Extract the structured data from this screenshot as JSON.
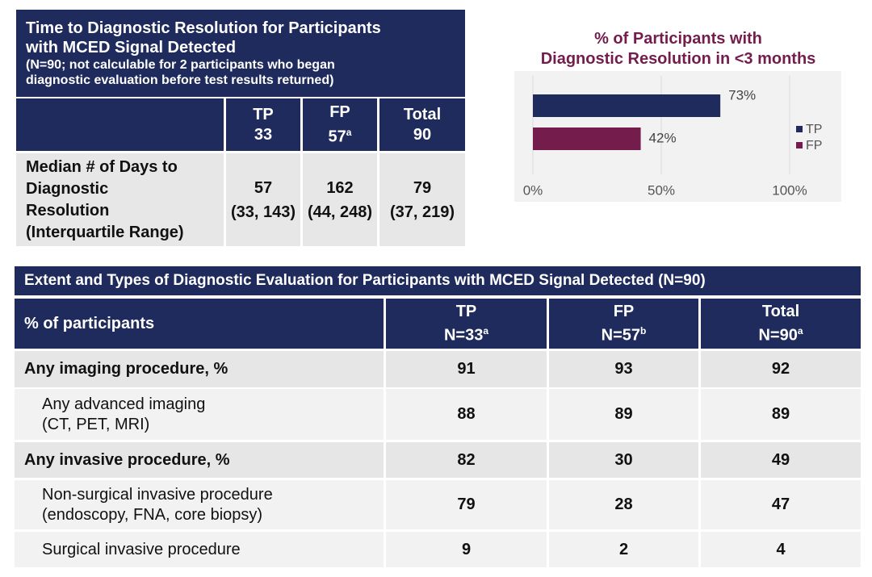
{
  "table1": {
    "title": [
      "Time to Diagnostic Resolution for Participants",
      "with MCED Signal Detected"
    ],
    "subtitle": [
      "(N=90; not calculable for 2 participants who began",
      "diagnostic evaluation before test results returned)"
    ],
    "columns": [
      {
        "label": "TP",
        "n": "33"
      },
      {
        "label": "FP",
        "n": "57",
        "note": "a"
      },
      {
        "label": "Total",
        "n": "90"
      }
    ],
    "row": {
      "label": [
        "Median # of Days to",
        "Diagnostic",
        "Resolution",
        "(Interquartile Range)"
      ],
      "values": [
        {
          "median": 57,
          "iqr": "(33, 143)"
        },
        {
          "median": 162,
          "iqr": "(44, 248)"
        },
        {
          "median": 79,
          "iqr": "(37, 219)"
        }
      ]
    }
  },
  "chart_data": {
    "type": "bar",
    "orientation": "horizontal",
    "title": [
      "% of Participants with",
      "Diagnostic Resolution in <3 months"
    ],
    "series": [
      {
        "name": "TP",
        "color": "#1e2b5c",
        "values": [
          73
        ],
        "value_labels": [
          "73%"
        ]
      },
      {
        "name": "FP",
        "color": "#741d4d",
        "values": [
          42
        ],
        "value_labels": [
          "42%"
        ]
      }
    ],
    "xlim": [
      0,
      100
    ],
    "xticks": [
      {
        "value": 0,
        "label": "0%"
      },
      {
        "value": 50,
        "label": "50%"
      },
      {
        "value": 100,
        "label": "100%"
      }
    ],
    "grid": true,
    "legend": "right"
  },
  "table2": {
    "title": "Extent and Types of Diagnostic Evaluation for Participants with MCED Signal Detected (N=90)",
    "header": "% of participants",
    "columns": [
      {
        "label": "TP",
        "n": "N=33",
        "note": "a"
      },
      {
        "label": "FP",
        "n": "N=57",
        "note": "b"
      },
      {
        "label": "Total",
        "n": "N=90",
        "note": "a"
      }
    ],
    "rows": [
      {
        "label": [
          "Any imaging procedure, %"
        ],
        "level": 0,
        "values": [
          91,
          93,
          92
        ]
      },
      {
        "label": [
          "Any advanced imaging",
          "(CT, PET, MRI)"
        ],
        "level": 1,
        "values": [
          88,
          89,
          89
        ]
      },
      {
        "label": [
          "Any invasive procedure, %"
        ],
        "level": 0,
        "values": [
          82,
          30,
          49
        ]
      },
      {
        "label": [
          "Non-surgical invasive procedure",
          "(endoscopy, FNA, core biopsy)"
        ],
        "level": 1,
        "values": [
          79,
          28,
          47
        ]
      },
      {
        "label": [
          "Surgical invasive procedure"
        ],
        "level": 1,
        "values": [
          9,
          2,
          4
        ]
      }
    ]
  }
}
